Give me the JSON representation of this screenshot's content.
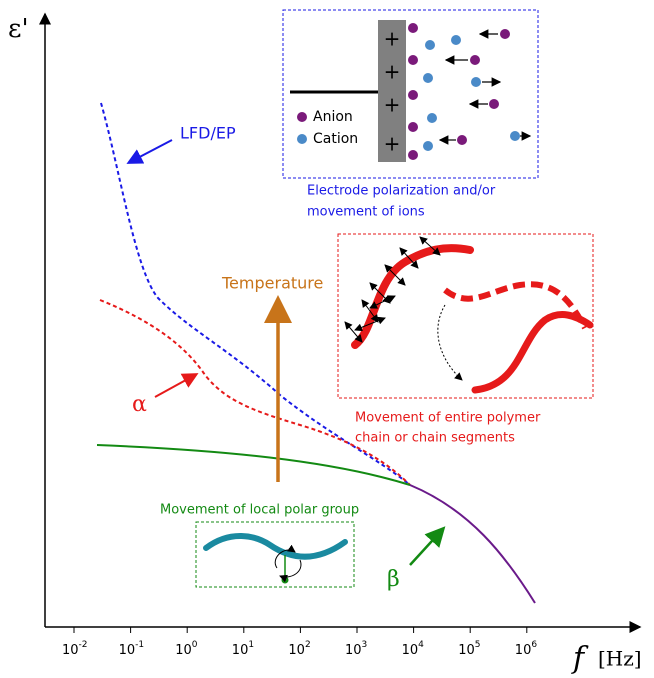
{
  "y_axis_label": "ε'",
  "x_axis_label": {
    "symbol": "f",
    "unit": "[Hz]"
  },
  "x_ticks": [
    {
      "base": "10",
      "exp": "-2"
    },
    {
      "base": "10",
      "exp": "-1"
    },
    {
      "base": "10",
      "exp": "0"
    },
    {
      "base": "10",
      "exp": "1"
    },
    {
      "base": "10",
      "exp": "2"
    },
    {
      "base": "10",
      "exp": "3"
    },
    {
      "base": "10",
      "exp": "4"
    },
    {
      "base": "10",
      "exp": "5"
    },
    {
      "base": "10",
      "exp": "6"
    }
  ],
  "labels": {
    "lfd": "LFD/EP",
    "alpha": "α",
    "beta": "β",
    "temperature": "Temperature"
  },
  "electrode_box": {
    "plus": [
      "+",
      "+",
      "+",
      "+"
    ],
    "anion": "Anion",
    "cation": "Cation",
    "caption": [
      "Electrode polarization and/or",
      "movement of ions"
    ]
  },
  "polymer_box": {
    "caption": [
      "Movement of entire polymer",
      "chain or chain segments"
    ]
  },
  "local_box": {
    "caption": "Movement of local polar group"
  }
}
